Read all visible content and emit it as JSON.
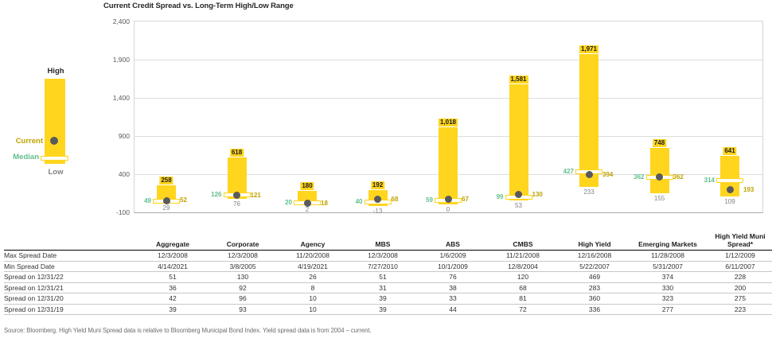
{
  "title": "Current Credit Spread vs. Long-Term High/Low Range",
  "legend": {
    "high_label": "High",
    "current_label": "Current",
    "median_label": "Median",
    "low_label": "Low"
  },
  "colors": {
    "bar_yellow": "#FFD51E",
    "median_green": "#5FBE8E",
    "current_gold": "#BFA200",
    "dot_gray": "#595A5C",
    "low_gray": "#808285"
  },
  "chart_data": {
    "type": "bar",
    "subtype": "high-low-range",
    "title": "Current Credit Spread vs. Long-Term High/Low Range",
    "categories": [
      "Aggregate",
      "Corporate",
      "Agency",
      "MBS",
      "ABS",
      "CMBS",
      "High Yield",
      "Emerging Markets",
      "High Yield Muni Spread*"
    ],
    "series": [
      {
        "name": "High",
        "values": [
          258,
          618,
          180,
          192,
          1018,
          1581,
          1971,
          748,
          641
        ]
      },
      {
        "name": "Low",
        "values": [
          29,
          76,
          2,
          -13,
          0,
          53,
          233,
          155,
          109
        ]
      },
      {
        "name": "Median",
        "values": [
          49,
          126,
          20,
          40,
          59,
          99,
          427,
          362,
          314
        ]
      },
      {
        "name": "Current",
        "values": [
          52,
          121,
          18,
          68,
          67,
          130,
          394,
          362,
          193
        ]
      }
    ],
    "ylim": [
      -100,
      2400
    ],
    "ytick_values": [
      2400,
      1900,
      1400,
      900,
      400,
      -100
    ],
    "ytick_labels": [
      "2,400",
      "1,900",
      "1,400",
      "900",
      "400",
      "-100"
    ],
    "grid": "horizontal",
    "legend_position": "left"
  },
  "table": {
    "columns": [
      "",
      "Aggregate",
      "Corporate",
      "Agency",
      "MBS",
      "ABS",
      "CMBS",
      "High Yield",
      "Emerging Markets",
      "High Yield Muni Spread*"
    ],
    "rows": [
      {
        "label": "Max Spread Date",
        "values": [
          "12/3/2008",
          "12/3/2008",
          "11/20/2008",
          "12/3/2008",
          "1/6/2009",
          "11/21/2008",
          "12/16/2008",
          "11/28/2008",
          "1/12/2009"
        ]
      },
      {
        "label": "Min Spread Date",
        "values": [
          "4/14/2021",
          "3/8/2005",
          "4/19/2021",
          "7/27/2010",
          "10/1/2009",
          "12/8/2004",
          "5/22/2007",
          "5/31/2007",
          "6/11/2007"
        ]
      },
      {
        "label": "Spread on 12/31/22",
        "values": [
          "51",
          "130",
          "26",
          "51",
          "76",
          "120",
          "469",
          "374",
          "228"
        ]
      },
      {
        "label": "Spread on 12/31/21",
        "values": [
          "36",
          "92",
          "8",
          "31",
          "38",
          "68",
          "283",
          "330",
          "200"
        ]
      },
      {
        "label": "Spread on 12/31/20",
        "values": [
          "42",
          "96",
          "10",
          "39",
          "33",
          "81",
          "360",
          "323",
          "275"
        ]
      },
      {
        "label": "Spread on 12/31/19",
        "values": [
          "39",
          "93",
          "10",
          "39",
          "44",
          "72",
          "336",
          "277",
          "223"
        ]
      }
    ]
  },
  "source": "Source: Bloomberg. High Yield Muni Spread data is relative to Bloomberg Municipal Bond Index. Yield spread data is from 2004 – current."
}
